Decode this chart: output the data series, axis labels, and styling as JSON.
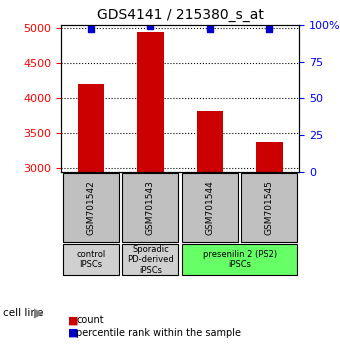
{
  "title": "GDS4141 / 215380_s_at",
  "samples": [
    "GSM701542",
    "GSM701543",
    "GSM701544",
    "GSM701545"
  ],
  "counts": [
    4200,
    4950,
    3820,
    3380
  ],
  "percentiles": [
    97,
    99,
    97,
    97
  ],
  "ylim_left": [
    2950,
    5050
  ],
  "yticks_left": [
    3000,
    3500,
    4000,
    4500,
    5000
  ],
  "yticks_right": [
    0,
    25,
    50,
    75,
    100
  ],
  "bar_color": "#cc0000",
  "dot_color": "#0000cc",
  "bar_bottom": 2950,
  "cell_line_labels": [
    "control\nIPSCs",
    "Sporadic\nPD-derived\niPSCs",
    "presenilin 2 (PS2)\niPSCs"
  ],
  "cell_line_colors": [
    "#d0d0d0",
    "#d0d0d0",
    "#66ff66"
  ],
  "cell_line_spans": [
    [
      0,
      1
    ],
    [
      1,
      2
    ],
    [
      2,
      4
    ]
  ],
  "sample_box_color": "#c0c0c0",
  "legend_count_color": "#cc0000",
  "legend_pct_color": "#0000cc"
}
